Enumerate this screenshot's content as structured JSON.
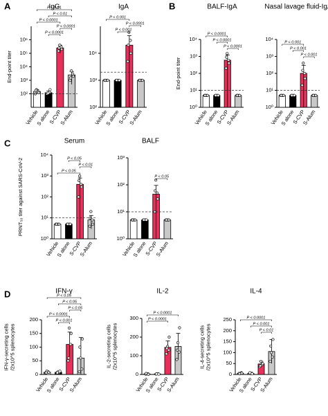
{
  "chart_data": [
    {
      "type": "bar",
      "panel": "A",
      "title": "IgG",
      "ylabel": [
        "End-point titer"
      ],
      "log": true,
      "categories": [
        "Vehicle",
        "S alone",
        "S-CVP",
        "S-Alum"
      ],
      "colors": [
        "#ffffff",
        "#000000",
        "#e8305a",
        "#c8c8c8"
      ],
      "values": [
        150,
        120,
        250000,
        2500
      ],
      "errors": [
        50,
        40,
        150000,
        2000
      ],
      "points": [
        [
          100,
          150,
          200,
          120,
          180
        ],
        [
          100,
          130,
          110,
          200
        ],
        [
          150000,
          300000,
          400000,
          200000,
          250000
        ],
        [
          1000,
          3000,
          5000,
          2000,
          1500
        ]
      ],
      "ylim": [
        10,
        10000000
      ],
      "yticks": [
        {
          "value": 100,
          "label": "10²"
        },
        {
          "value": 1000,
          "label": "10³"
        },
        {
          "value": 10000,
          "label": "10⁴"
        },
        {
          "value": 100000,
          "label": "10⁵"
        },
        {
          "value": 1000000,
          "label": "10⁶"
        }
      ],
      "threshold": 100,
      "comparisons": [
        {
          "pair": [
            "Vehicle",
            "S-Alum"
          ],
          "label": "P < 0.01"
        },
        {
          "pair": [
            "S alone",
            "S-Alum"
          ],
          "label": "P < 0.01"
        },
        {
          "pair": [
            "Vehicle",
            "S-CVP"
          ],
          "label": "P < 0.0001"
        },
        {
          "pair": [
            "S-CVP",
            "S-Alum"
          ],
          "label": "P < 0.0001"
        },
        {
          "pair": [
            "S alone",
            "S-CVP"
          ],
          "label": "P < 0.0001"
        }
      ]
    },
    {
      "type": "bar",
      "title": "IgA",
      "log": true,
      "categories": [
        "Vehicle",
        "S alone",
        "S-CVP",
        "S-Alum"
      ],
      "colors": [
        "#ffffff",
        "#000000",
        "#e8305a",
        "#c8c8c8"
      ],
      "values": [
        1000,
        1000,
        20000,
        1000
      ],
      "errors": [
        0,
        0,
        25000,
        0
      ],
      "points": [
        [
          1000,
          1000,
          1000,
          1000,
          1000
        ],
        [
          1000,
          1000,
          1000,
          1000,
          1000
        ],
        [
          5000,
          30000,
          60000,
          10000,
          20000
        ],
        [
          1000,
          1000,
          1000,
          1000,
          1000
        ]
      ],
      "ylim": [
        100,
        100000
      ],
      "yticks": [
        {
          "value": 100,
          "label": "10²"
        },
        {
          "value": 1000,
          "label": "10³"
        },
        {
          "value": 10000,
          "label": "10⁴"
        }
      ],
      "threshold": 2000,
      "comparisons": [
        {
          "pair": [
            "Vehicle",
            "S-CVP"
          ],
          "label": "P < 0.001"
        },
        {
          "pair": [
            "S-CVP",
            "S-Alum"
          ],
          "label": "P < 0.0001"
        },
        {
          "pair": [
            "S alone",
            "S-CVP"
          ],
          "label": "P < 0.001"
        }
      ]
    },
    {
      "type": "bar",
      "panel": "B",
      "title": "BALF-IgA",
      "ylabel": [
        "End-point titer"
      ],
      "log": true,
      "categories": [
        "Vehicle",
        "S alone",
        "S-CVP",
        "S-Alum"
      ],
      "colors": [
        "#ffffff",
        "#000000",
        "#e8305a",
        "#c8c8c8"
      ],
      "values": [
        5,
        5,
        600,
        5
      ],
      "errors": [
        0,
        0,
        600,
        0
      ],
      "points": [
        [
          5,
          5,
          5,
          5,
          5
        ],
        [
          5,
          5,
          5,
          5,
          5
        ],
        [
          200,
          600,
          1500,
          400,
          900
        ],
        [
          5,
          5,
          5,
          5,
          5
        ]
      ],
      "ylim": [
        1,
        10000
      ],
      "yticks": [
        {
          "value": 1,
          "label": "10⁰"
        },
        {
          "value": 10,
          "label": "10¹"
        },
        {
          "value": 100,
          "label": "10²"
        },
        {
          "value": 1000,
          "label": "10³"
        },
        {
          "value": 10000,
          "label": "10⁴"
        }
      ],
      "threshold": 10,
      "comparisons": [
        {
          "pair": [
            "Vehicle",
            "S-CVP"
          ],
          "label": "P < 0.0001"
        },
        {
          "pair": [
            "S alone",
            "S-CVP"
          ],
          "label": "P < 0.0001"
        },
        {
          "pair": [
            "S-CVP",
            "S-Alum"
          ],
          "label": "P < 0.0001"
        }
      ]
    },
    {
      "type": "bar",
      "title": "Nasal lavage fluid-IgA",
      "log": true,
      "categories": [
        "Vehicle",
        "S alone",
        "S-CVP",
        "S-Alum"
      ],
      "colors": [
        "#ffffff",
        "#000000",
        "#e8305a",
        "#c8c8c8"
      ],
      "values": [
        5,
        5,
        100,
        5
      ],
      "errors": [
        0,
        0,
        200,
        0
      ],
      "points": [
        [
          5,
          5,
          5,
          5,
          5
        ],
        [
          5,
          5,
          5,
          5,
          5
        ],
        [
          20,
          100,
          400,
          50,
          150
        ],
        [
          5,
          5,
          5,
          5,
          5
        ]
      ],
      "ylim": [
        1,
        10000
      ],
      "yticks": [
        {
          "value": 1,
          "label": "10⁰"
        },
        {
          "value": 10,
          "label": "10¹"
        },
        {
          "value": 100,
          "label": "10²"
        },
        {
          "value": 1000,
          "label": "10³"
        },
        {
          "value": 10000,
          "label": "10⁴"
        }
      ],
      "threshold": 10,
      "comparisons": [
        {
          "pair": [
            "Vehicle",
            "S-CVP"
          ],
          "label": "P < 0.001"
        },
        {
          "pair": [
            "S alone",
            "S-CVP"
          ],
          "label": "P < 0.001"
        },
        {
          "pair": [
            "S-CVP",
            "S-Alum"
          ],
          "label": "P < 0.001"
        }
      ]
    },
    {
      "type": "bar",
      "panel": "C",
      "title": "Serum",
      "ylabel": [
        "PRNT₅₀ titer against SARS-CoV-2"
      ],
      "log": true,
      "categories": [
        "Vehicle",
        "S alone",
        "S-CVP",
        "S-Alum"
      ],
      "colors": [
        "#ffffff",
        "#000000",
        "#e8305a",
        "#c8c8c8"
      ],
      "values": [
        5,
        5,
        400,
        8
      ],
      "errors": [
        0,
        0,
        400,
        5
      ],
      "points": [
        [
          5,
          5,
          5,
          5,
          5
        ],
        [
          5,
          5,
          5,
          5,
          5
        ],
        [
          100,
          400,
          1000,
          300,
          600
        ],
        [
          4,
          8,
          20,
          5,
          10
        ]
      ],
      "ylim": [
        1,
        10000
      ],
      "yticks": [
        {
          "value": 1,
          "label": "10⁰"
        },
        {
          "value": 10,
          "label": "10¹"
        },
        {
          "value": 100,
          "label": "10²"
        },
        {
          "value": 1000,
          "label": "10³"
        },
        {
          "value": 10000,
          "label": "10⁴"
        }
      ],
      "threshold": 10,
      "comparisons": [
        {
          "pair": [
            "S alone",
            "S-CVP"
          ],
          "label": "P < 0.05"
        },
        {
          "pair": [
            "S-CVP",
            "S-Alum"
          ],
          "label": "P < 0.01"
        },
        {
          "pair": [
            "Vehicle",
            "S-CVP"
          ],
          "label": "P < 0.05"
        }
      ]
    },
    {
      "type": "bar",
      "title": "BALF",
      "log": true,
      "categories": [
        "Vehicle",
        "S alone",
        "S-CVP",
        "S-Alum"
      ],
      "colors": [
        "#ffffff",
        "#000000",
        "#e8305a",
        "#c8c8c8"
      ],
      "values": [
        5,
        5,
        45,
        5
      ],
      "errors": [
        0,
        0,
        50,
        0
      ],
      "points": [
        [
          5,
          5,
          5,
          5,
          5
        ],
        [
          5,
          5,
          5,
          5,
          5
        ],
        [
          10,
          50,
          150,
          30,
          60
        ],
        [
          5,
          5,
          5,
          5,
          5
        ]
      ],
      "ylim": [
        1,
        1000
      ],
      "yticks": [
        {
          "value": 1,
          "label": "10⁰"
        },
        {
          "value": 10,
          "label": "10¹"
        },
        {
          "value": 100,
          "label": "10²"
        },
        {
          "value": 1000,
          "label": "10³"
        }
      ],
      "threshold": 10,
      "comparisons": [
        {
          "pair": [
            "S-CVP",
            "S-Alum"
          ],
          "label": "P < 0.05"
        }
      ]
    },
    {
      "type": "bar",
      "panel": "D",
      "title": "IFN-γ",
      "ylabel": [
        "IFN-γ-secreting cells",
        "/2x10^5 splenocytes"
      ],
      "log": false,
      "categories": [
        "Vehicle",
        "S alone",
        "S-CVP",
        "S-Alum"
      ],
      "colors": [
        "#ffffff",
        "#000000",
        "#e8305a",
        "#c8c8c8"
      ],
      "values": [
        8,
        8,
        110,
        60
      ],
      "errors": [
        3,
        3,
        45,
        75
      ],
      "points": [
        [
          5,
          10,
          12,
          8,
          6
        ],
        [
          5,
          8,
          10,
          12,
          6
        ],
        [
          50,
          110,
          170,
          150,
          60
        ],
        [
          10,
          20,
          60,
          130,
          100
        ]
      ],
      "ylim": [
        0,
        200
      ],
      "yticks": [
        0,
        50,
        100,
        150,
        200
      ],
      "comparisons": [
        {
          "pair": [
            "Vehicle",
            "S-Alum"
          ],
          "label": "P < 0.05"
        },
        {
          "pair": [
            "S alone",
            "S-Alum"
          ],
          "label": "P < 0.05"
        },
        {
          "pair": [
            "S-CVP",
            "S-Alum"
          ],
          "label": "P < 0.05"
        },
        {
          "pair": [
            "Vehicle",
            "S-CVP"
          ],
          "label": "P < 0.0001"
        },
        {
          "pair": [
            "S alone",
            "S-CVP"
          ],
          "label": "P < 0.001"
        }
      ]
    },
    {
      "type": "bar",
      "title": "IL-2",
      "ylabel": [
        "IL-2-secreting cells",
        "/2x10^5 splenocytes"
      ],
      "log": false,
      "categories": [
        "Vehicle",
        "S alone",
        "S-CVP",
        "S-Alum"
      ],
      "colors": [
        "#ffffff",
        "#000000",
        "#e8305a",
        "#c8c8c8"
      ],
      "values": [
        3,
        3,
        145,
        150
      ],
      "errors": [
        2,
        1,
        35,
        70
      ],
      "points": [
        [
          2,
          4,
          3,
          1,
          5
        ],
        [
          2,
          3,
          4,
          2,
          3
        ],
        [
          110,
          130,
          150,
          200,
          140
        ],
        [
          80,
          120,
          170,
          250,
          130
        ]
      ],
      "ylim": [
        0,
        300
      ],
      "yticks": [
        0,
        100,
        200,
        300
      ],
      "comparisons": [
        {
          "pair": [
            "Vehicle",
            "S-Alum"
          ],
          "label": "P < 0.0001"
        },
        {
          "pair": [
            "Vehicle",
            "S-CVP"
          ],
          "label": "P < 0.0001"
        }
      ]
    },
    {
      "type": "bar",
      "title": "IL-4",
      "ylabel": [
        "IL-4-secreting cells",
        "/2x10^5 splenocytes"
      ],
      "log": false,
      "categories": [
        "Vehicle",
        "S alone",
        "S-CVP",
        "S-Alum"
      ],
      "colors": [
        "#ffffff",
        "#000000",
        "#e8305a",
        "#c8c8c8"
      ],
      "values": [
        5,
        5,
        48,
        105
      ],
      "errors": [
        2,
        2,
        12,
        55
      ],
      "points": [
        [
          5,
          8,
          4,
          6,
          3
        ],
        [
          5,
          6,
          4,
          3,
          8
        ],
        [
          35,
          45,
          60,
          50,
          40
        ],
        [
          60,
          80,
          100,
          160,
          130
        ]
      ],
      "ylim": [
        0,
        250
      ],
      "yticks": [
        0,
        50,
        100,
        150,
        200,
        250
      ],
      "comparisons": [
        {
          "pair": [
            "Vehicle",
            "S-Alum"
          ],
          "label": "P < 0.0001"
        },
        {
          "pair": [
            "S alone",
            "S-Alum"
          ],
          "label": "P < 0.001"
        },
        {
          "pair": [
            "S-CVP",
            "S-Alum"
          ],
          "label": "P < 0.01"
        }
      ]
    }
  ]
}
